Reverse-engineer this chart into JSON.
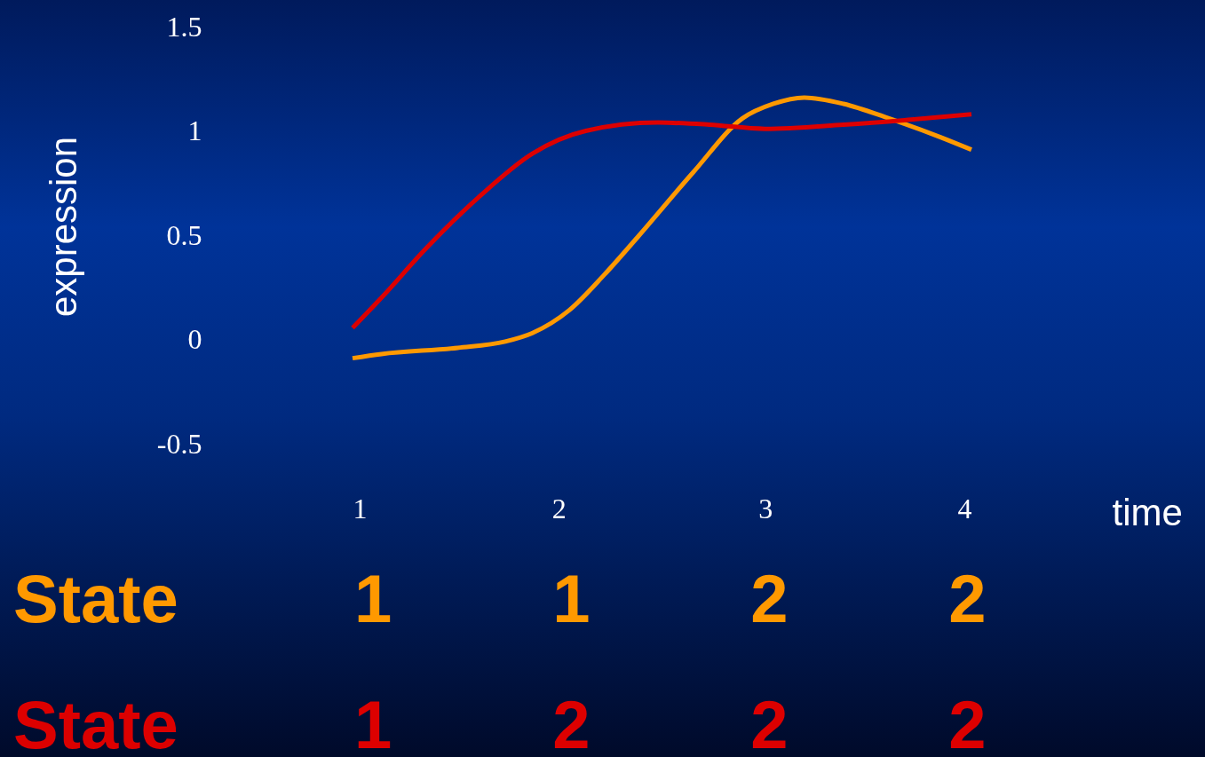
{
  "chart_data": {
    "type": "line",
    "xlabel": "time",
    "ylabel": "expression",
    "xlim": [
      1,
      4
    ],
    "ylim": [
      -0.5,
      1.5
    ],
    "xticks": [
      1,
      2,
      3,
      4
    ],
    "yticks": [
      -0.5,
      0,
      0.5,
      1,
      1.5
    ],
    "series": [
      {
        "color": "#ff9900",
        "x": [
          1,
          1.14,
          1.51,
          1.74,
          1.87,
          2.05,
          2.22,
          2.39,
          2.65,
          2.89,
          3.04,
          3.19,
          3.38,
          3.6,
          3.85,
          4
        ],
        "values": [
          -0.09,
          -0.07,
          -0.04,
          -0.01,
          0.03,
          0.14,
          0.31,
          0.5,
          0.8,
          1.06,
          1.13,
          1.16,
          1.13,
          1.06,
          0.97,
          0.91
        ]
      },
      {
        "color": "#dd0000",
        "x": [
          1,
          1.14,
          1.36,
          1.62,
          1.87,
          2.13,
          2.48,
          2.73,
          3,
          3.38,
          3.72,
          4
        ],
        "values": [
          0.055,
          0.2,
          0.44,
          0.69,
          0.89,
          1,
          1.04,
          1.03,
          1.01,
          1.03,
          1.055,
          1.08
        ]
      }
    ],
    "annotations": [
      "State",
      "1",
      "1",
      "2",
      "2",
      "State",
      "1",
      "2",
      "2",
      "2"
    ]
  }
}
